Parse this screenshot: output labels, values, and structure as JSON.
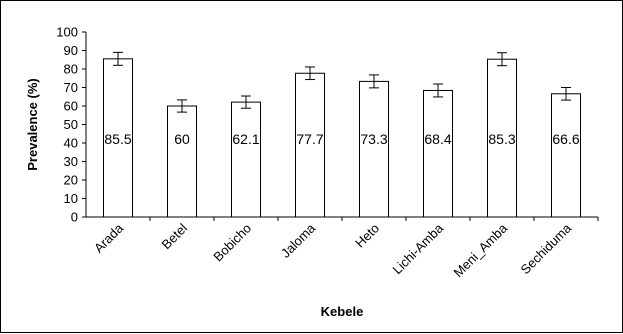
{
  "chart_data": {
    "type": "bar",
    "title": "",
    "xlabel": "Kebele",
    "ylabel": "Prevalence (%)",
    "ylim": [
      0,
      100
    ],
    "ytick_step": 10,
    "grid": false,
    "categories": [
      "Arada",
      "Betel",
      "Bobicho",
      "Jaloma",
      "Heto",
      "Lichi-Amba",
      "Meni_Amba",
      "Sechiduma"
    ],
    "values": [
      85.5,
      60,
      62.1,
      77.7,
      73.3,
      68.4,
      85.3,
      66.6
    ],
    "data_labels": [
      "85.5",
      "60",
      "62.1",
      "77.7",
      "73.3",
      "68.4",
      "85.3",
      "66.6"
    ],
    "error_plus_minus": [
      3.5,
      3.3,
      3.3,
      3.4,
      3.5,
      3.5,
      3.5,
      3.4
    ],
    "bar_fill": "#ffffff",
    "bar_stroke": "#000000"
  }
}
